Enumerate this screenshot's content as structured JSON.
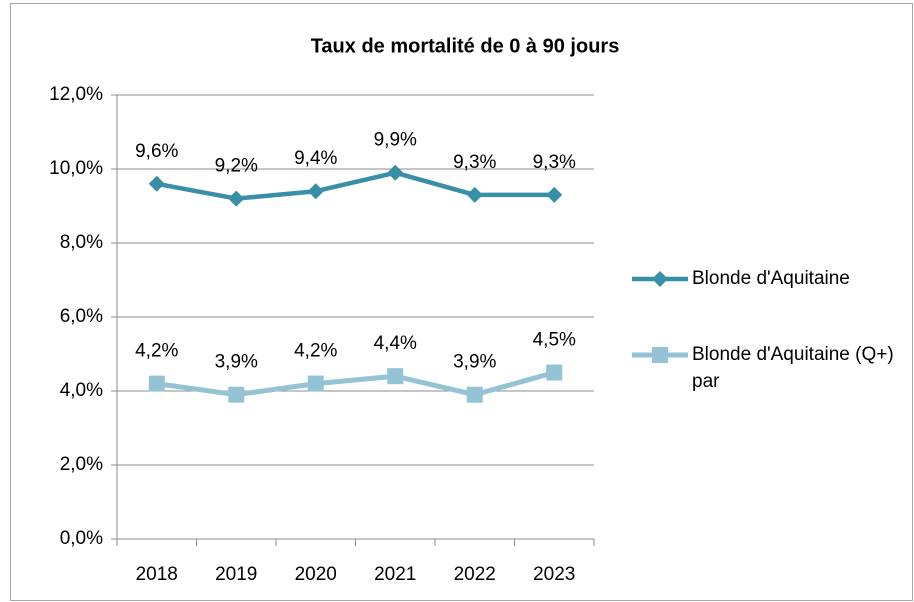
{
  "chart_data": {
    "type": "line",
    "title": "Taux de mortalité de 0 à 90 jours",
    "categories": [
      "2018",
      "2019",
      "2020",
      "2021",
      "2022",
      "2023"
    ],
    "series": [
      {
        "name": "Blonde d'Aquitaine",
        "color": "#3a8fa8",
        "marker": "diamond",
        "values": [
          9.6,
          9.2,
          9.4,
          9.9,
          9.3,
          9.3
        ],
        "value_labels": [
          "9,6%",
          "9,2%",
          "9,4%",
          "9,9%",
          "9,3%",
          "9,3%"
        ]
      },
      {
        "name": "Blonde d'Aquitaine (Q+) par",
        "color": "#93c3d4",
        "marker": "square",
        "values": [
          4.2,
          3.9,
          4.2,
          4.4,
          3.9,
          4.5
        ],
        "value_labels": [
          "4,2%",
          "3,9%",
          "4,2%",
          "4,4%",
          "3,9%",
          "4,5%"
        ]
      }
    ],
    "ylim": [
      0,
      12
    ],
    "yticks": [
      {
        "value": 0,
        "label": "0,0%"
      },
      {
        "value": 2,
        "label": "2,0%"
      },
      {
        "value": 4,
        "label": "4,0%"
      },
      {
        "value": 6,
        "label": "6,0%"
      },
      {
        "value": 8,
        "label": "8,0%"
      },
      {
        "value": 10,
        "label": "10,0%"
      },
      {
        "value": 12,
        "label": "12,0%"
      }
    ],
    "grid": true,
    "legend": "right"
  }
}
